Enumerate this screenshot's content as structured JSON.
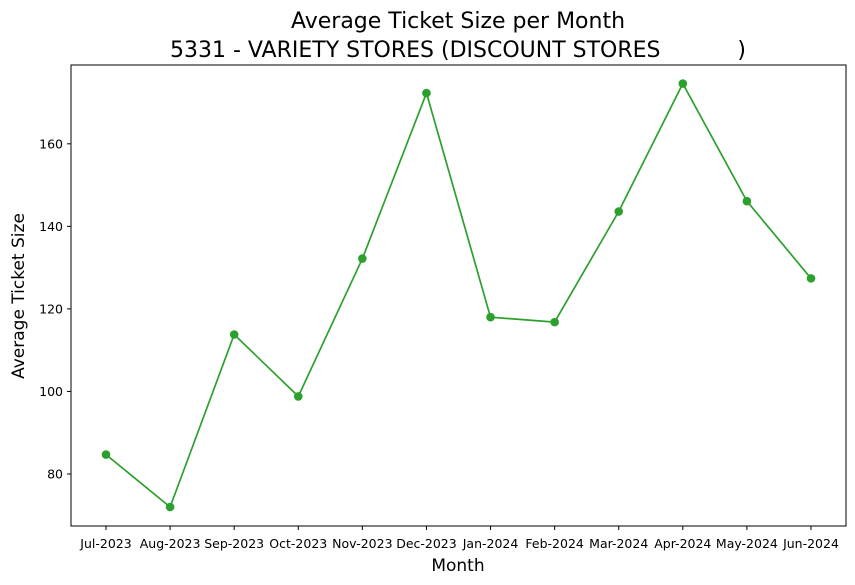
{
  "chart_data": {
    "type": "line",
    "title_line1": "Average Ticket Size per Month",
    "title_line2": "5331 - VARIETY STORES (DISCOUNT STORES           )",
    "xlabel": "Month",
    "ylabel": "Average Ticket Size",
    "categories": [
      "Jul-2023",
      "Aug-2023",
      "Sep-2023",
      "Oct-2023",
      "Nov-2023",
      "Dec-2023",
      "Jan-2024",
      "Feb-2024",
      "Mar-2024",
      "Apr-2024",
      "May-2024",
      "Jun-2024"
    ],
    "values": [
      84.7,
      72.0,
      113.8,
      98.8,
      132.2,
      172.3,
      118.0,
      116.8,
      143.6,
      174.6,
      146.1,
      127.4
    ],
    "ylim": [
      67.4,
      179.1
    ],
    "yticks": [
      80,
      100,
      120,
      140,
      160
    ],
    "line_color": "#2ca02c",
    "grid": false,
    "legend": "none"
  }
}
